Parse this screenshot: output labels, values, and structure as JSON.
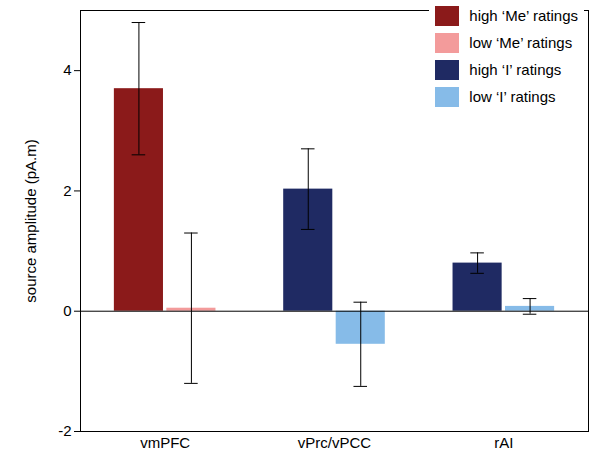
{
  "chart_data": {
    "type": "bar",
    "y_label": "source amplitude (pA.m)",
    "categories": [
      "vmPFC",
      "vPrc/vPCC",
      "rAI"
    ],
    "series": [
      {
        "name": "high ‘Me’ ratings",
        "color": "#8b1a1a",
        "values": [
          3.7,
          null,
          null
        ],
        "errors": [
          1.1,
          null,
          null
        ]
      },
      {
        "name": "low ‘Me’ ratings",
        "color": "#f39b9b",
        "values": [
          0.05,
          null,
          null
        ],
        "errors": [
          1.25,
          null,
          null
        ]
      },
      {
        "name": "high ‘I’ ratings",
        "color": "#1f2a63",
        "values": [
          null,
          2.03,
          0.8
        ],
        "errors": [
          null,
          0.67,
          0.17
        ]
      },
      {
        "name": "low ‘I’ ratings",
        "color": "#86bbe8",
        "values": [
          null,
          -0.55,
          0.08
        ],
        "errors": [
          null,
          0.7,
          0.13
        ]
      }
    ],
    "ylim": [
      -2,
      5
    ],
    "yticks": [
      -2,
      0,
      2,
      4
    ],
    "legend": "upper right"
  }
}
